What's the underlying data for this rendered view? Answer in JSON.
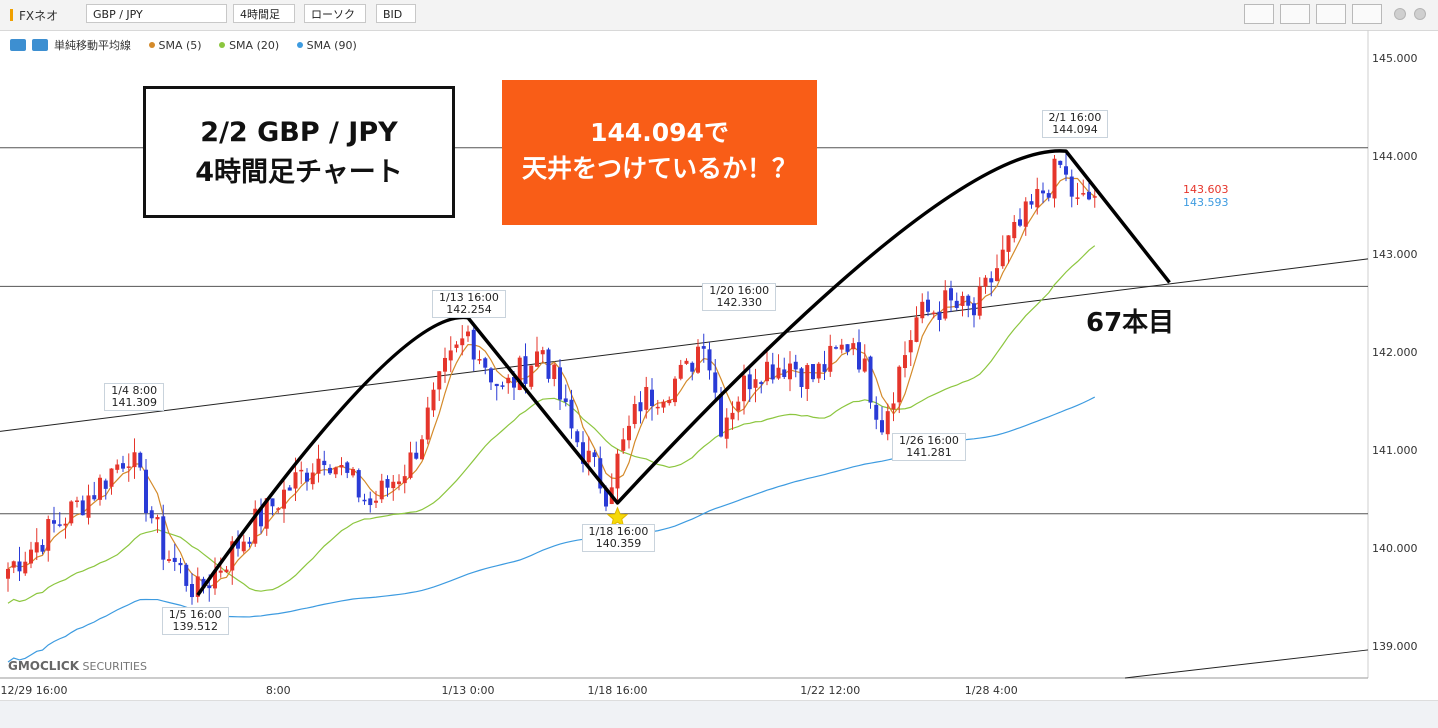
{
  "toolbar": {
    "app_name": "FXネオ",
    "symbol": "GBP / JPY",
    "timeframe": "4時間足",
    "chart_style": "ローソク",
    "price_type": "BID"
  },
  "legend": {
    "indicator": "単純移動平均線",
    "sma5": "SMA (5)",
    "sma20": "SMA (20)",
    "sma90": "SMA (90)",
    "colors": {
      "sma5": "#d48a2a",
      "sma20": "#8cc63f",
      "sma90": "#3d9be0"
    }
  },
  "annotations": {
    "title_line1": "2/2  GBP / JPY",
    "title_line2": "4時間足チャート",
    "callout_line1": "144.094で",
    "callout_line2": "天井をつけているか！？",
    "count_label": "67本目",
    "logo_main": "GMOCLICK",
    "logo_sub": "SECURITIES"
  },
  "chart_data": {
    "type": "candlestick",
    "y_range": [
      138.75,
      145.25
    ],
    "y_ticks": [
      "145.000",
      "144.000",
      "143.000",
      "142.000",
      "141.000",
      "140.000",
      "139.000"
    ],
    "x_ticks": [
      "12/29 16:00",
      "8:00",
      "1/13 0:00",
      "1/18 16:00",
      "1/22 12:00",
      "1/28 4:00"
    ],
    "current_prices": {
      "ask_like": "143.603",
      "bid_like": "143.593"
    },
    "horizontal_lines": [
      144.094,
      142.68,
      140.36
    ],
    "price_labels": [
      {
        "time": "1/4 8:00",
        "price": "141.309"
      },
      {
        "time": "1/5 16:00",
        "price": "139.512"
      },
      {
        "time": "1/13 16:00",
        "price": "142.254"
      },
      {
        "time": "1/18 16:00",
        "price": "140.359"
      },
      {
        "time": "1/20 16:00",
        "price": "142.330"
      },
      {
        "time": "1/26 16:00",
        "price": "141.281"
      },
      {
        "time": "2/1 16:00",
        "price": "144.094"
      }
    ],
    "zigzag": [
      {
        "bar": 33,
        "price": 139.53
      },
      {
        "bar": 80,
        "price": 142.36
      },
      {
        "bar": 106,
        "price": 140.47
      },
      {
        "bar": 184,
        "price": 144.06
      },
      {
        "bar": 202,
        "price": 142.72
      }
    ],
    "key_closes": [
      [
        0,
        139.8
      ],
      [
        15,
        140.6
      ],
      [
        21,
        141.0
      ],
      [
        27,
        140.0
      ],
      [
        33,
        139.55
      ],
      [
        42,
        140.2
      ],
      [
        55,
        141.0
      ],
      [
        63,
        140.45
      ],
      [
        70,
        140.9
      ],
      [
        76,
        141.8
      ],
      [
        80,
        142.2
      ],
      [
        86,
        141.6
      ],
      [
        93,
        142.05
      ],
      [
        98,
        141.2
      ],
      [
        104,
        140.6
      ],
      [
        110,
        141.5
      ],
      [
        118,
        141.8
      ],
      [
        121,
        142.2
      ],
      [
        124,
        141.3
      ],
      [
        130,
        141.85
      ],
      [
        136,
        141.9
      ],
      [
        140,
        141.75
      ],
      [
        147,
        142.15
      ],
      [
        152,
        141.3
      ],
      [
        158,
        142.35
      ],
      [
        163,
        142.5
      ],
      [
        168,
        142.4
      ],
      [
        174,
        143.1
      ],
      [
        180,
        143.65
      ],
      [
        183,
        143.9
      ],
      [
        186,
        143.5
      ],
      [
        189,
        143.6
      ]
    ]
  }
}
